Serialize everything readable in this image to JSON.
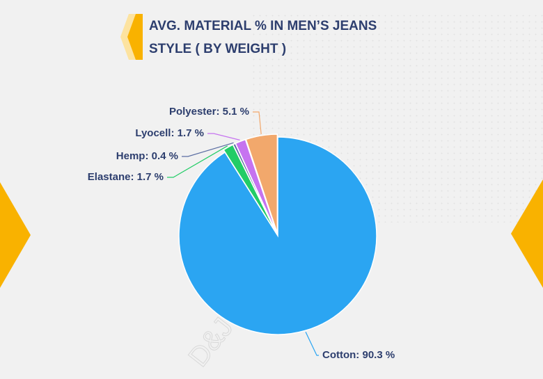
{
  "chart_data": {
    "type": "pie",
    "title": [
      "AVG. MATERIAL % IN MEN’S JEANS",
      "STYLE ( BY WEIGHT )"
    ],
    "watermark": "D&J Reports",
    "values": [
      90.3,
      1.7,
      0.4,
      1.7,
      5.1
    ],
    "value_labels": [
      "Cotton: 90.3 %",
      "Elastane: 1.7 %",
      "Hemp: 0.4 %",
      "Lyocell: 1.7 %",
      "Polyester: 5.1 %"
    ],
    "colors": [
      "#2ba5f2",
      "#22cc66",
      "#5b6ea3",
      "#c673f0",
      "#f2a86c"
    ]
  }
}
